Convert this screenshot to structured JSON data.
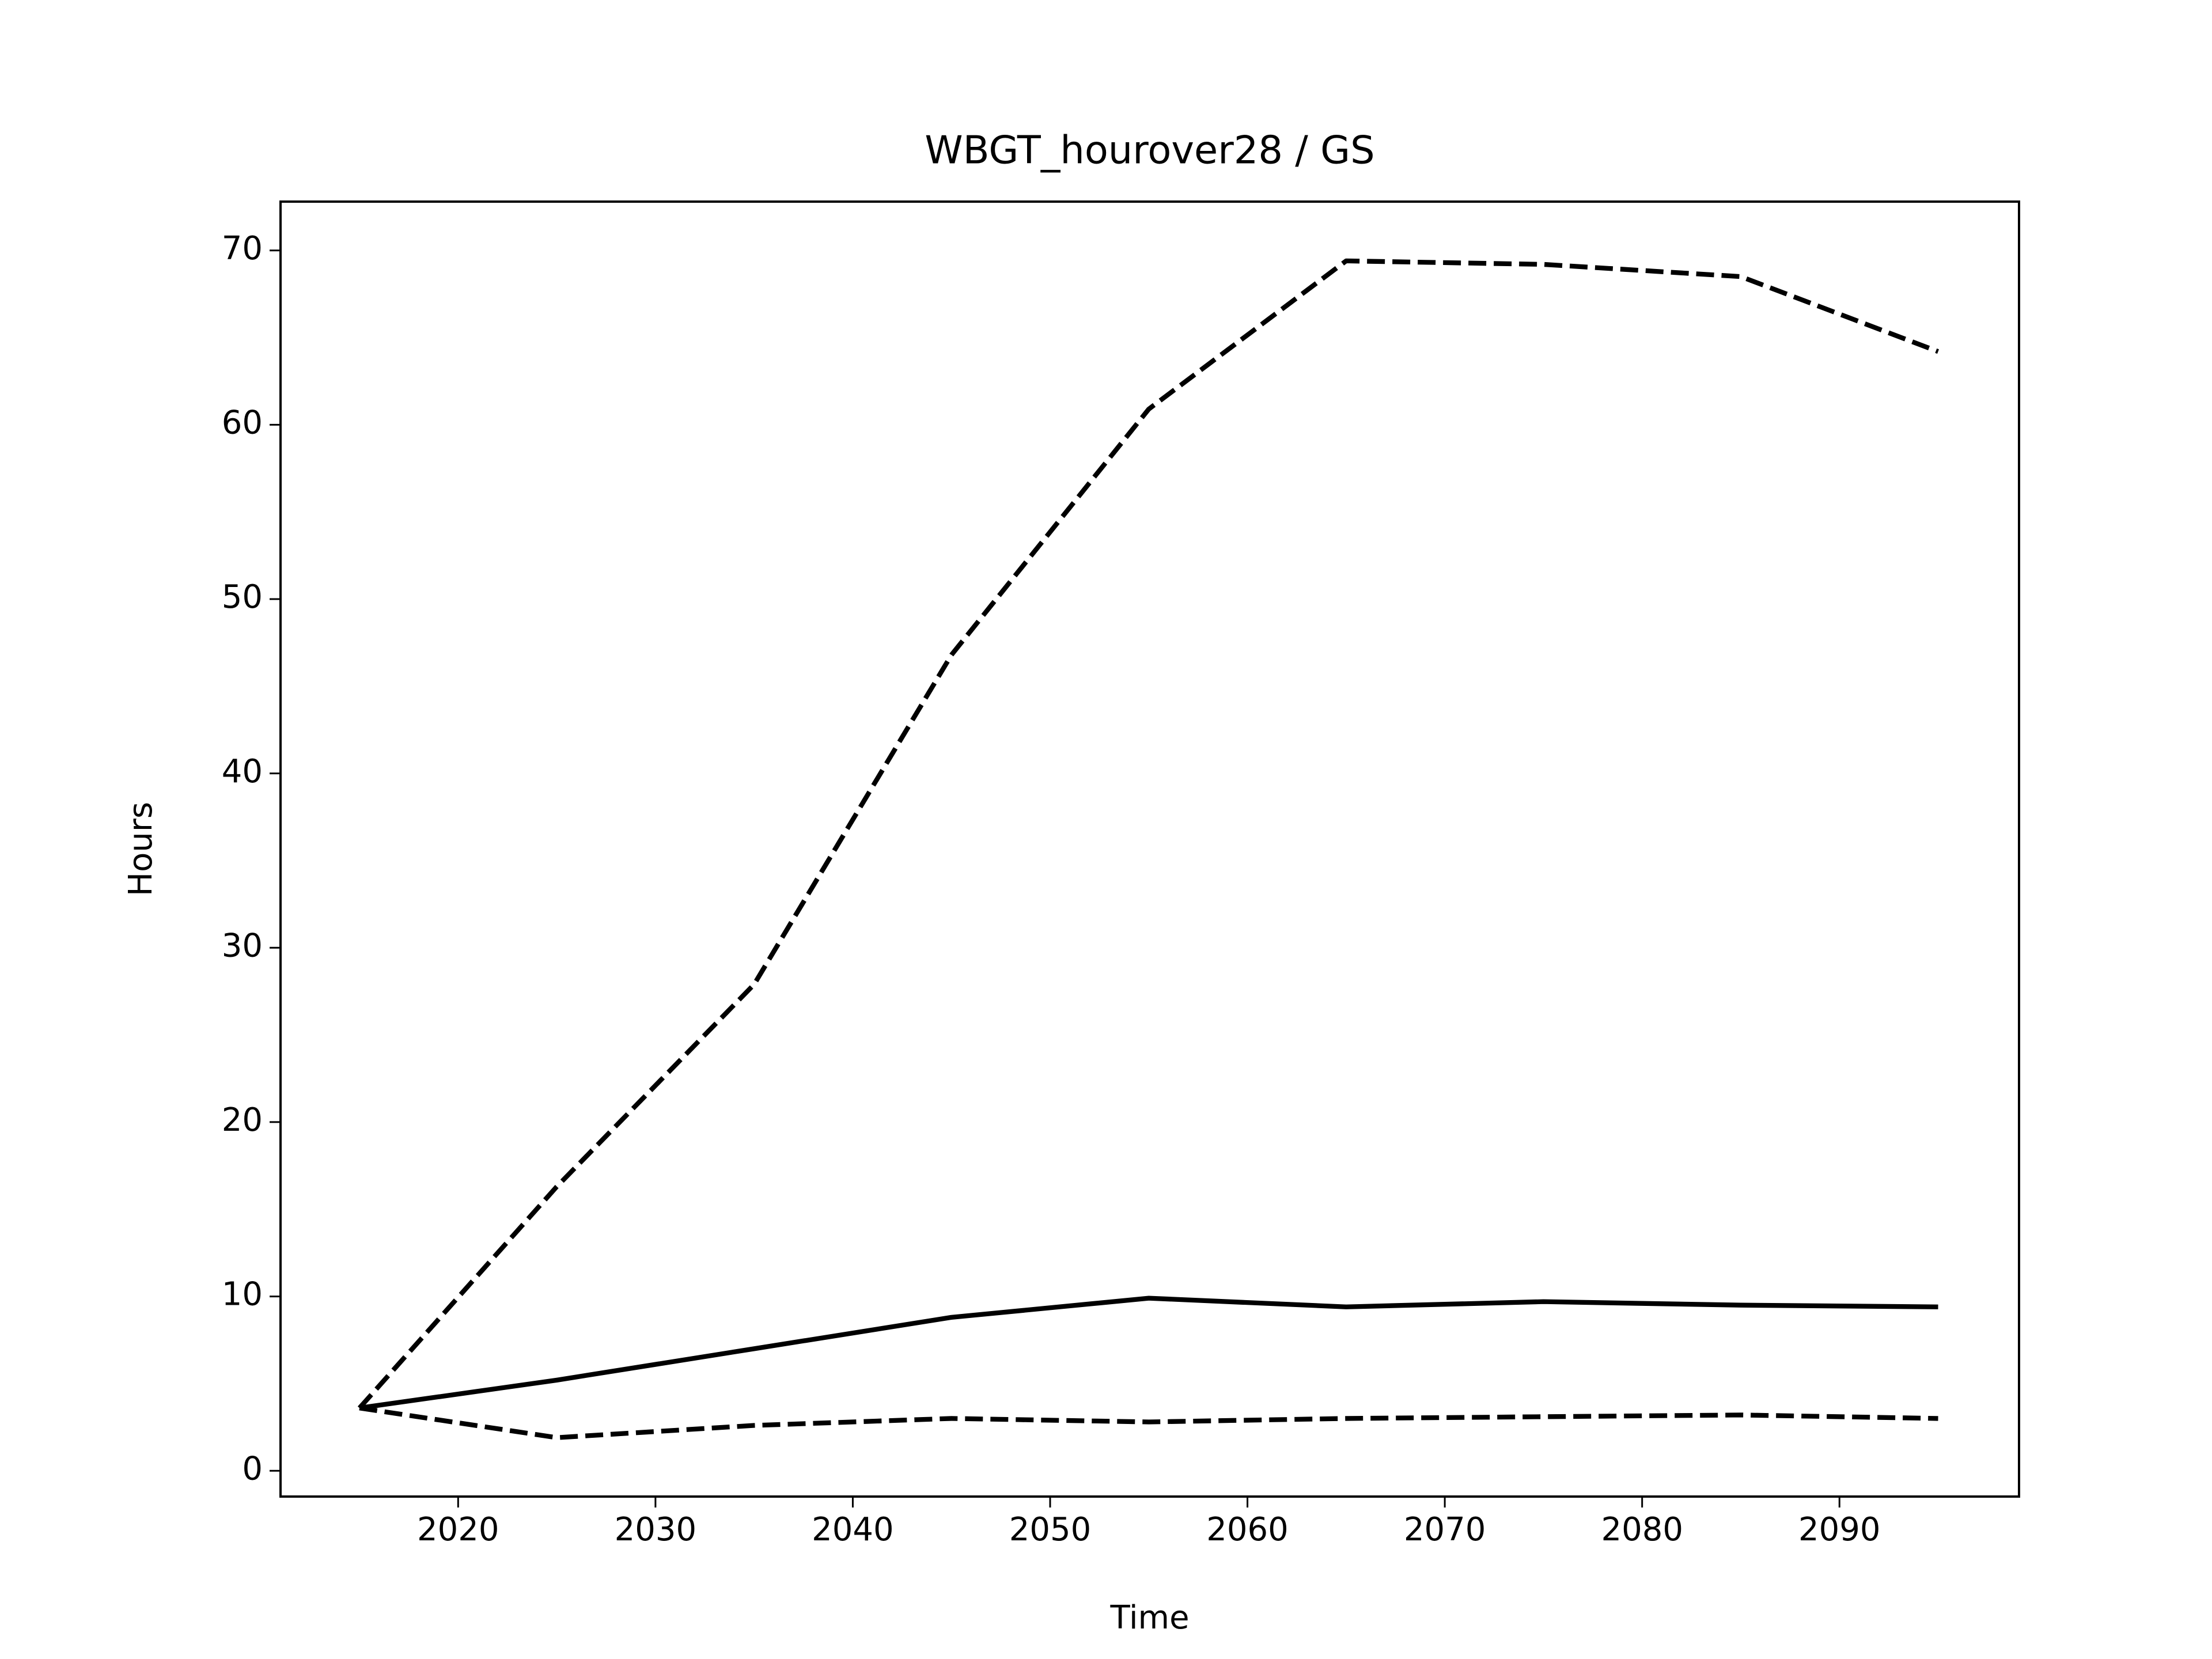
{
  "chart_data": {
    "type": "line",
    "title": "WBGT_hourover28 / GS",
    "xlabel": "Time",
    "ylabel": "Hours",
    "x": [
      2015,
      2025,
      2035,
      2045,
      2055,
      2065,
      2075,
      2085,
      2095
    ],
    "series": [
      {
        "color": "#000000",
        "dashed": true,
        "values": [
          3.6,
          16.3,
          27.9,
          46.8,
          60.9,
          69.4,
          69.2,
          68.5,
          64.2
        ]
      },
      {
        "color": "#000000",
        "dashed": false,
        "values": [
          3.6,
          5.2,
          7.0,
          8.8,
          9.9,
          9.4,
          9.7,
          9.5,
          9.4
        ]
      },
      {
        "color": "#000000",
        "dashed": true,
        "values": [
          3.6,
          1.9,
          2.6,
          3.0,
          2.8,
          3.0,
          3.1,
          3.2,
          3.0
        ]
      }
    ],
    "xlim": [
      2011,
      2099.1
    ],
    "ylim": [
      -1.48,
      72.8
    ],
    "xticks": [
      2020,
      2030,
      2040,
      2050,
      2060,
      2070,
      2080,
      2090
    ],
    "yticks": [
      0,
      10,
      20,
      30,
      40,
      50,
      60,
      70
    ],
    "grid": false
  }
}
